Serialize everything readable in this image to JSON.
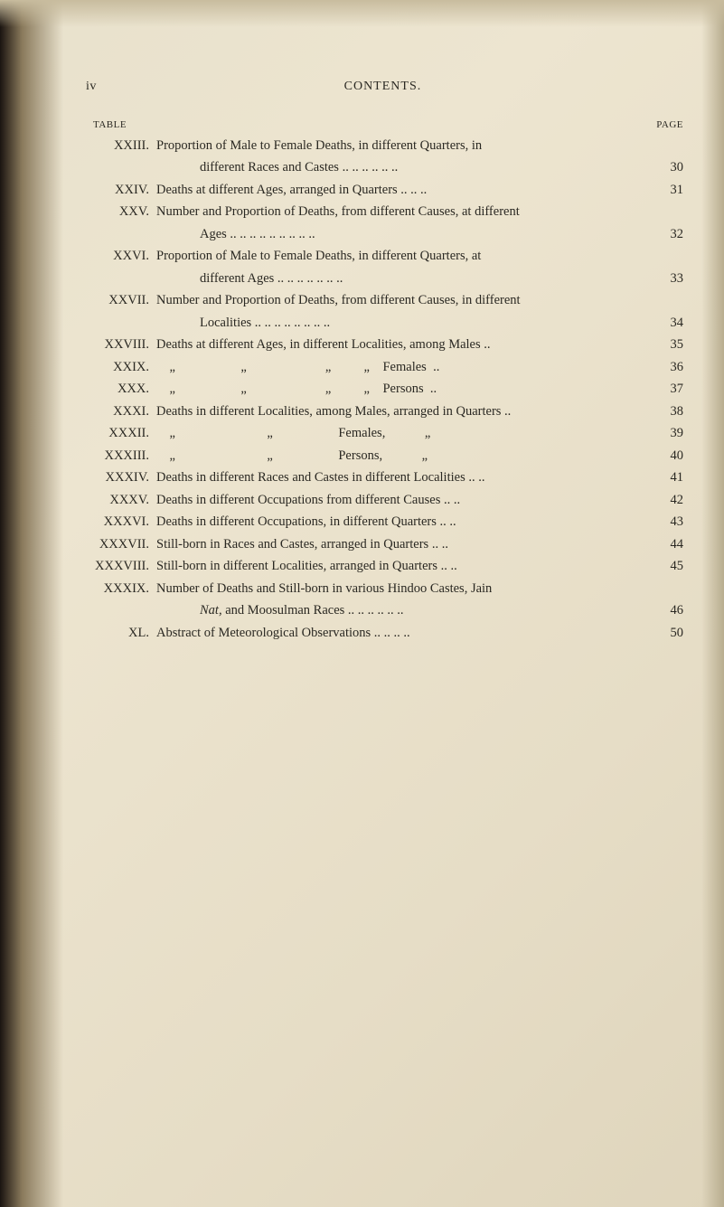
{
  "header": {
    "page_roman": "iv",
    "title": "CONTENTS."
  },
  "column_labels": {
    "left": "TABLE",
    "right": "PAGE"
  },
  "entries": [
    {
      "roman": "XXIII.",
      "lines": [
        "Proportion of Male to Female Deaths, in different Quarters, in",
        "different Races and Castes .. .. .. .. .. .."
      ],
      "page": "30"
    },
    {
      "roman": "XXIV.",
      "lines": [
        "Deaths at different Ages, arranged in Quarters .. .. .."
      ],
      "page": "31"
    },
    {
      "roman": "XXV.",
      "lines": [
        "Number and Proportion of Deaths, from different Causes, at different",
        "Ages .. .. .. .. .. .. .. .. .."
      ],
      "page": "32"
    },
    {
      "roman": "XXVI.",
      "lines": [
        "Proportion of Male to Female Deaths, in different Quarters, at",
        "different Ages .. .. .. .. .. .. .."
      ],
      "page": "33"
    },
    {
      "roman": "XXVII.",
      "lines": [
        "Number and Proportion of Deaths, from different Causes, in different",
        "Localities .. .. .. .. .. .. .. .."
      ],
      "page": "34"
    },
    {
      "roman": "XXVIII.",
      "lines": [
        "Deaths at different Ages, in different Localities, among Males .."
      ],
      "page": "35"
    },
    {
      "roman": "XXIX.",
      "lines": [
        "    „                    „                        „          „    Females  .."
      ],
      "page": "36"
    },
    {
      "roman": "XXX.",
      "lines": [
        "    „                    „                        „          „    Persons  .."
      ],
      "page": "37"
    },
    {
      "roman": "XXXI.",
      "lines": [
        "Deaths in different Localities, among Males, arranged in Quarters .."
      ],
      "page": "38"
    },
    {
      "roman": "XXXII.",
      "lines": [
        "    „                            „                    Females,            „"
      ],
      "page": "39"
    },
    {
      "roman": "XXXIII.",
      "lines": [
        "    „                            „                    Persons,            „"
      ],
      "page": "40"
    },
    {
      "roman": "XXXIV.",
      "lines": [
        "Deaths in different Races and Castes in different Localities .. .."
      ],
      "page": "41"
    },
    {
      "roman": "XXXV.",
      "lines": [
        "Deaths in different Occupations from different Causes .. .."
      ],
      "page": "42"
    },
    {
      "roman": "XXXVI.",
      "lines": [
        "Deaths in different Occupations, in different Quarters .. .."
      ],
      "page": "43"
    },
    {
      "roman": "XXXVII.",
      "lines": [
        "Still-born in Races and Castes, arranged in Quarters .. .."
      ],
      "page": "44"
    },
    {
      "roman": "XXXVIII.",
      "lines": [
        "Still-born in different Localities, arranged in Quarters .. .."
      ],
      "page": "45"
    },
    {
      "roman": "XXXIX.",
      "lines": [
        "Number of Deaths and Still-born in various Hindoo Castes, Jain",
        "Nat, and Moosulman Races .. .. .. .. .. .."
      ],
      "italic_word": "Nat,",
      "page": "46"
    },
    {
      "roman": "XL.",
      "lines": [
        "Abstract of Meteorological Observations .. .. .. .."
      ],
      "page": "50"
    }
  ],
  "colors": {
    "page_bg": "#e8e1cc",
    "text": "#2a2822",
    "edge_dark": "#1a1410"
  },
  "typography": {
    "body_fontsize": 14.5,
    "header_fontsize": 14,
    "label_fontsize": 11,
    "font_family": "Georgia, Times New Roman, serif"
  }
}
